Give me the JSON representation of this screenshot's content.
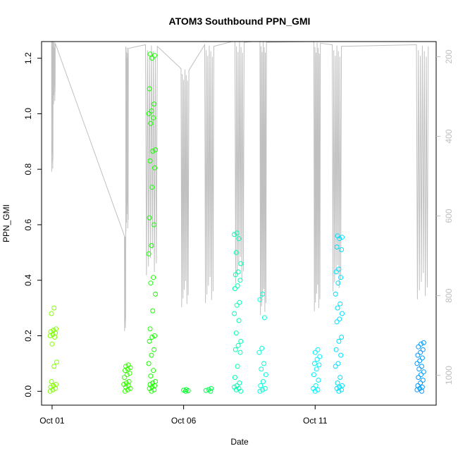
{
  "chart_data": {
    "type": "scatter",
    "title": "ATOM3 Southbound PPN_GMI",
    "xlabel": "Date",
    "ylabel": "PPN_GMI",
    "x_ticks": [
      {
        "label": "Oct 01",
        "day": 1.0
      },
      {
        "label": "Oct 06",
        "day": 6.0
      },
      {
        "label": "Oct 11",
        "day": 11.0
      }
    ],
    "xlim_days": [
      0.6,
      15.6
    ],
    "ylim": [
      -0.05,
      1.26
    ],
    "y_ticks": [
      "0.0",
      "0.2",
      "0.4",
      "0.6",
      "0.8",
      "1.0",
      "1.2"
    ],
    "y2_ticks": [
      "200",
      "400",
      "600",
      "800",
      "1000"
    ],
    "y2lim": [
      1075,
      162
    ],
    "y2_axis_color": "#bebebe",
    "profile_color": "#c0c0c0",
    "grid": false,
    "legend": "none",
    "point_clusters": [
      {
        "day": 1.05,
        "color": "#80ff00",
        "values": [
          0.0,
          0.005,
          0.01,
          0.015,
          0.02,
          0.025,
          0.035,
          0.09,
          0.105,
          0.17,
          0.195,
          0.2,
          0.205,
          0.21,
          0.215,
          0.22,
          0.225,
          0.28,
          0.3
        ]
      },
      {
        "day": 3.85,
        "color": "#33ff00",
        "values": [
          0.0,
          0.005,
          0.01,
          0.015,
          0.02,
          0.025,
          0.03,
          0.035,
          0.05,
          0.06,
          0.065,
          0.075,
          0.08,
          0.085,
          0.09,
          0.095
        ]
      },
      {
        "day": 4.8,
        "color": "#19ff00",
        "values": [
          0.0,
          0.005,
          0.01,
          0.015,
          0.02,
          0.025,
          0.03,
          0.035,
          0.055,
          0.075,
          0.1,
          0.13,
          0.15,
          0.18,
          0.195,
          0.2,
          0.225,
          0.29,
          0.35,
          0.39,
          0.41,
          0.495,
          0.525,
          0.6,
          0.625,
          0.735,
          0.805,
          0.83,
          0.865,
          0.87,
          0.965,
          0.985,
          1.0,
          1.01,
          1.035,
          1.09,
          1.2,
          1.21,
          1.215
        ]
      },
      {
        "day": 6.05,
        "color": "#00ff26",
        "values": [
          0.0,
          0.002,
          0.004,
          0.006
        ]
      },
      {
        "day": 6.95,
        "color": "#00ff4d",
        "values": [
          0.0,
          0.003,
          0.006,
          0.01
        ]
      },
      {
        "day": 8.05,
        "color": "#00ffb3",
        "values": [
          0.0,
          0.005,
          0.01,
          0.015,
          0.02,
          0.03,
          0.05,
          0.09,
          0.14,
          0.15,
          0.165,
          0.18,
          0.21,
          0.255,
          0.28,
          0.31,
          0.32,
          0.37,
          0.38,
          0.4,
          0.42,
          0.43,
          0.46,
          0.5,
          0.55,
          0.565,
          0.57
        ]
      },
      {
        "day": 9.0,
        "color": "#00ffd9",
        "values": [
          0.0,
          0.005,
          0.01,
          0.02,
          0.035,
          0.06,
          0.08,
          0.1,
          0.14,
          0.155,
          0.265,
          0.33,
          0.35
        ]
      },
      {
        "day": 11.05,
        "color": "#00f2ff",
        "values": [
          0.0,
          0.005,
          0.01,
          0.02,
          0.04,
          0.06,
          0.08,
          0.095,
          0.1,
          0.115,
          0.125,
          0.14,
          0.15
        ]
      },
      {
        "day": 11.9,
        "color": "#00e0ff",
        "values": [
          0.0,
          0.005,
          0.01,
          0.015,
          0.02,
          0.03,
          0.05,
          0.09,
          0.1,
          0.13,
          0.15,
          0.18,
          0.195,
          0.25,
          0.26,
          0.28,
          0.3,
          0.315,
          0.35,
          0.39,
          0.41,
          0.43,
          0.44,
          0.51,
          0.52,
          0.55,
          0.555,
          0.56
        ]
      },
      {
        "day": 15.0,
        "color": "#0099ff",
        "values": [
          0.0,
          0.005,
          0.01,
          0.015,
          0.02,
          0.03,
          0.04,
          0.05,
          0.06,
          0.07,
          0.08,
          0.09,
          0.1,
          0.11,
          0.12,
          0.13,
          0.14,
          0.15,
          0.16,
          0.17,
          0.175
        ]
      }
    ]
  }
}
